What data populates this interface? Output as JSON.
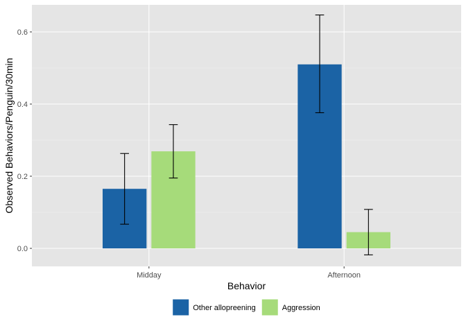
{
  "chart_data": {
    "type": "bar",
    "xlabel": "Behavior",
    "ylabel": "Observed Behaviors/Penguin/30min",
    "categories": [
      "Midday",
      "Afternoon"
    ],
    "ylim": [
      -0.05,
      0.675
    ],
    "yticks": [
      0.0,
      0.2,
      0.4,
      0.6
    ],
    "ytick_labels": [
      "0.0",
      "0.2",
      "0.4",
      "0.6"
    ],
    "grid": true,
    "legend_position": "bottom",
    "series": [
      {
        "name": "Other allopreening",
        "color": "#1b63a5",
        "values": [
          0.165,
          0.51
        ],
        "error_low": [
          0.067,
          0.376
        ],
        "error_high": [
          0.263,
          0.647
        ]
      },
      {
        "name": "Aggression",
        "color": "#a6db7a",
        "values": [
          0.269,
          0.045
        ],
        "error_low": [
          0.195,
          -0.018
        ],
        "error_high": [
          0.343,
          0.108
        ]
      }
    ]
  }
}
